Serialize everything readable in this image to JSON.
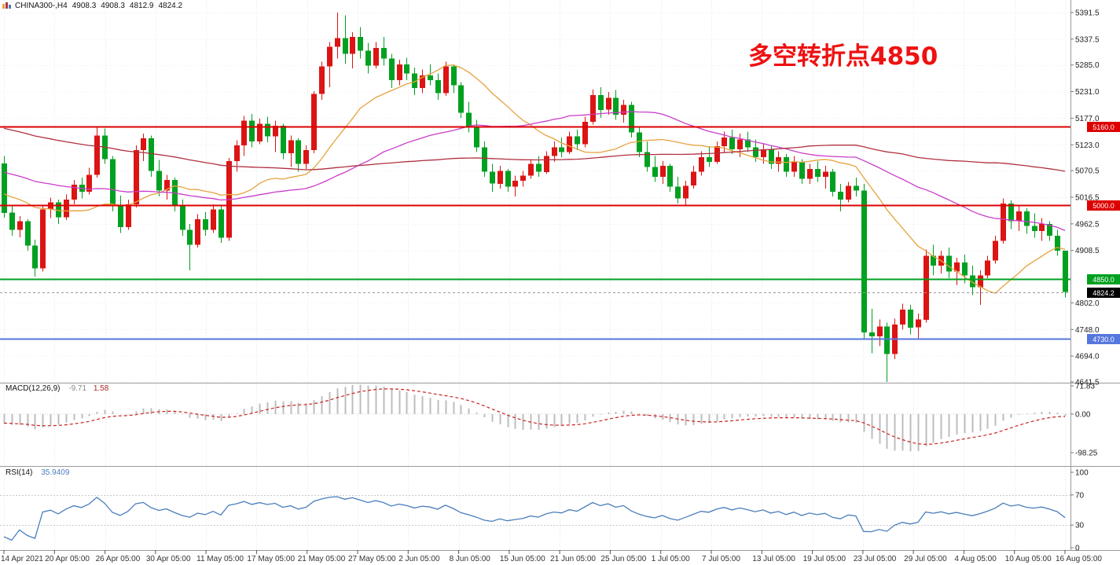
{
  "header": {
    "title": "CHINA300-,H4",
    "open": "4908.3",
    "high": "4908.3",
    "low": "4812.9",
    "close": "4824.2"
  },
  "chart_data": {
    "type": "candlestick",
    "symbol": "CHINA300-",
    "timeframe": "H4",
    "annotation": {
      "text": "多空转折点4850",
      "color": "#ee1111"
    },
    "ylim": [
      4641.5,
      5391.5
    ],
    "price_ticks": [
      "5391.5",
      "5337.5",
      "5285.0",
      "5231.0",
      "5177.0",
      "5123.0",
      "5070.5",
      "5016.5",
      "4962.5",
      "4908.5",
      "4802.0",
      "4748.0",
      "4694.0",
      "4641.5"
    ],
    "x_labels": [
      "14 Apr 2021",
      "20 Apr 05:00",
      "26 Apr 05:00",
      "30 Apr 05:00",
      "11 May 05:00",
      "17 May 05:00",
      "21 May 05:00",
      "27 May 05:00",
      "2 Jun 05:00",
      "8 Jun 05:00",
      "15 Jun 05:00",
      "21 Jun 05:00",
      "25 Jun 05:00",
      "1 Jul 05:00",
      "7 Jul 05:00",
      "13 Jul 05:00",
      "19 Jul 05:00",
      "23 Jul 05:00",
      "29 Jul 05:00",
      "4 Aug 05:00",
      "10 Aug 05:00",
      "16 Aug 05:00"
    ],
    "levels": [
      {
        "price": 5160.0,
        "label": "5160.0",
        "color": "#dd0000",
        "text_color": "#ffffff"
      },
      {
        "price": 5000.0,
        "label": "5000.0",
        "color": "#dd0000",
        "text_color": "#ffffff"
      },
      {
        "price": 4850.0,
        "label": "4850.0",
        "color": "#00a020",
        "text_color": "#ffffff"
      },
      {
        "price": 4730.0,
        "label": "4730.0",
        "color": "#5577dd",
        "text_color": "#ffffff"
      }
    ],
    "current_price": {
      "price": 4824.2,
      "label": "4824.2",
      "bg": "#000000",
      "text_color": "#ffffff"
    },
    "colors": {
      "up": "#dc1414",
      "down": "#00a020",
      "background": "#ffffff",
      "grid": "#e7e7e7"
    },
    "moving_averages": [
      {
        "period": 18,
        "color": "#e6a23c"
      },
      {
        "period": 45,
        "color": "#c93dc9"
      },
      {
        "period": 100,
        "color": "#b03040"
      }
    ],
    "history_hint": {
      "start": 5320,
      "end": 5000,
      "bars": 100
    },
    "candles_ohlc": [
      [
        5085,
        5100,
        4975,
        4985
      ],
      [
        4985,
        5000,
        4938,
        4950
      ],
      [
        4950,
        4978,
        4935,
        4968
      ],
      [
        4968,
        4972,
        4908,
        4918
      ],
      [
        4918,
        4930,
        4855,
        4872
      ],
      [
        4872,
        4998,
        4866,
        4992
      ],
      [
        4992,
        5016,
        4974,
        5006
      ],
      [
        5006,
        5012,
        4962,
        4976
      ],
      [
        4976,
        5022,
        4970,
        5012
      ],
      [
        5012,
        5052,
        5002,
        5042
      ],
      [
        5042,
        5056,
        5014,
        5028
      ],
      [
        5028,
        5076,
        5022,
        5062
      ],
      [
        5062,
        5160,
        5056,
        5142
      ],
      [
        5142,
        5156,
        5084,
        5094
      ],
      [
        5094,
        5100,
        4988,
        4998
      ],
      [
        4998,
        5020,
        4944,
        4956
      ],
      [
        4956,
        5012,
        4950,
        5002
      ],
      [
        5002,
        5122,
        4996,
        5112
      ],
      [
        5112,
        5146,
        5090,
        5136
      ],
      [
        5136,
        5142,
        5058,
        5070
      ],
      [
        5070,
        5092,
        5018,
        5030
      ],
      [
        5030,
        5062,
        5012,
        5052
      ],
      [
        5052,
        5056,
        4988,
        5000
      ],
      [
        5000,
        5012,
        4938,
        4950
      ],
      [
        4950,
        4962,
        4868,
        4920
      ],
      [
        4920,
        4982,
        4914,
        4972
      ],
      [
        4972,
        4986,
        4938,
        4950
      ],
      [
        4950,
        5002,
        4944,
        4992
      ],
      [
        4992,
        5000,
        4924,
        4934
      ],
      [
        4934,
        5096,
        4928,
        5090
      ],
      [
        5090,
        5132,
        5068,
        5122
      ],
      [
        5122,
        5182,
        5100,
        5172
      ],
      [
        5172,
        5186,
        5118,
        5130
      ],
      [
        5130,
        5176,
        5124,
        5166
      ],
      [
        5166,
        5180,
        5128,
        5140
      ],
      [
        5140,
        5172,
        5108,
        5162
      ],
      [
        5162,
        5166,
        5094,
        5106
      ],
      [
        5106,
        5142,
        5078,
        5132
      ],
      [
        5132,
        5136,
        5068,
        5084
      ],
      [
        5084,
        5122,
        5074,
        5112
      ],
      [
        5112,
        5232,
        5106,
        5226
      ],
      [
        5226,
        5292,
        5214,
        5282
      ],
      [
        5282,
        5332,
        5240,
        5322
      ],
      [
        5322,
        5391.5,
        5298,
        5340
      ],
      [
        5340,
        5386,
        5288,
        5308
      ],
      [
        5308,
        5352,
        5278,
        5342
      ],
      [
        5342,
        5362,
        5298,
        5314
      ],
      [
        5314,
        5330,
        5268,
        5284
      ],
      [
        5284,
        5332,
        5278,
        5320
      ],
      [
        5320,
        5342,
        5284,
        5298
      ],
      [
        5298,
        5308,
        5238,
        5254
      ],
      [
        5254,
        5296,
        5244,
        5286
      ],
      [
        5286,
        5300,
        5254,
        5268
      ],
      [
        5268,
        5280,
        5224,
        5238
      ],
      [
        5238,
        5276,
        5228,
        5264
      ],
      [
        5264,
        5286,
        5244,
        5254
      ],
      [
        5254,
        5268,
        5214,
        5228
      ],
      [
        5228,
        5292,
        5222,
        5282
      ],
      [
        5282,
        5286,
        5228,
        5244
      ],
      [
        5244,
        5250,
        5178,
        5188
      ],
      [
        5188,
        5210,
        5148,
        5158
      ],
      [
        5158,
        5174,
        5108,
        5118
      ],
      [
        5118,
        5130,
        5058,
        5068
      ],
      [
        5068,
        5084,
        5028,
        5044
      ],
      [
        5044,
        5080,
        5034,
        5070
      ],
      [
        5070,
        5074,
        5028,
        5038
      ],
      [
        5038,
        5060,
        5018,
        5050
      ],
      [
        5050,
        5070,
        5038,
        5060
      ],
      [
        5060,
        5094,
        5054,
        5084
      ],
      [
        5084,
        5100,
        5058,
        5068
      ],
      [
        5068,
        5110,
        5064,
        5100
      ],
      [
        5100,
        5130,
        5088,
        5118
      ],
      [
        5118,
        5138,
        5098,
        5108
      ],
      [
        5108,
        5150,
        5104,
        5140
      ],
      [
        5140,
        5154,
        5112,
        5124
      ],
      [
        5124,
        5180,
        5118,
        5170
      ],
      [
        5170,
        5235,
        5164,
        5224
      ],
      [
        5224,
        5240,
        5178,
        5194
      ],
      [
        5194,
        5230,
        5184,
        5218
      ],
      [
        5218,
        5234,
        5174,
        5184
      ],
      [
        5184,
        5214,
        5168,
        5204
      ],
      [
        5204,
        5210,
        5138,
        5148
      ],
      [
        5148,
        5160,
        5098,
        5108
      ],
      [
        5108,
        5130,
        5068,
        5078
      ],
      [
        5078,
        5100,
        5048,
        5058
      ],
      [
        5058,
        5090,
        5044,
        5080
      ],
      [
        5080,
        5084,
        5028,
        5038
      ],
      [
        5038,
        5058,
        5004,
        5014
      ],
      [
        5014,
        5050,
        5000,
        5040
      ],
      [
        5040,
        5080,
        5034,
        5068
      ],
      [
        5068,
        5110,
        5060,
        5098
      ],
      [
        5098,
        5120,
        5078,
        5088
      ],
      [
        5088,
        5130,
        5084,
        5120
      ],
      [
        5120,
        5150,
        5108,
        5138
      ],
      [
        5138,
        5154,
        5104,
        5114
      ],
      [
        5114,
        5146,
        5098,
        5134
      ],
      [
        5134,
        5150,
        5108,
        5118
      ],
      [
        5118,
        5134,
        5088,
        5098
      ],
      [
        5098,
        5124,
        5084,
        5114
      ],
      [
        5114,
        5120,
        5074,
        5084
      ],
      [
        5084,
        5110,
        5068,
        5098
      ],
      [
        5098,
        5104,
        5058,
        5068
      ],
      [
        5068,
        5100,
        5058,
        5088
      ],
      [
        5088,
        5094,
        5044,
        5054
      ],
      [
        5054,
        5084,
        5044,
        5074
      ],
      [
        5074,
        5090,
        5048,
        5058
      ],
      [
        5058,
        5080,
        5034,
        5068
      ],
      [
        5068,
        5074,
        5018,
        5028
      ],
      [
        5028,
        5044,
        4988,
        5012
      ],
      [
        5012,
        5048,
        5006,
        5040
      ],
      [
        5040,
        5056,
        5018,
        5030
      ],
      [
        5030,
        5044,
        4728,
        4742
      ],
      [
        4742,
        4790,
        4700,
        4734
      ],
      [
        4734,
        4768,
        4714,
        4754
      ],
      [
        4754,
        4762,
        4641.5,
        4698
      ],
      [
        4698,
        4770,
        4688,
        4758
      ],
      [
        4758,
        4800,
        4748,
        4788
      ],
      [
        4788,
        4798,
        4738,
        4752
      ],
      [
        4752,
        4780,
        4728,
        4768
      ],
      [
        4768,
        4910,
        4762,
        4898
      ],
      [
        4898,
        4920,
        4858,
        4878
      ],
      [
        4878,
        4908,
        4862,
        4898
      ],
      [
        4898,
        4914,
        4852,
        4866
      ],
      [
        4866,
        4894,
        4838,
        4884
      ],
      [
        4884,
        4900,
        4842,
        4858
      ],
      [
        4858,
        4878,
        4818,
        4834
      ],
      [
        4834,
        4868,
        4798,
        4858
      ],
      [
        4858,
        4898,
        4852,
        4888
      ],
      [
        4888,
        4938,
        4882,
        4928
      ],
      [
        4928,
        5014,
        4922,
        5004
      ],
      [
        5004,
        5010,
        4952,
        4968
      ],
      [
        4968,
        4998,
        4948,
        4988
      ],
      [
        4988,
        4994,
        4942,
        4958
      ],
      [
        4958,
        4984,
        4934,
        4948
      ],
      [
        4948,
        4974,
        4928,
        4962
      ],
      [
        4962,
        4968,
        4928,
        4938
      ],
      [
        4938,
        4950,
        4898,
        4908.3
      ],
      [
        4908.3,
        4908.3,
        4812.9,
        4824.2
      ]
    ],
    "indicators": {
      "macd": {
        "label": "MACD(12,26,9)",
        "value_hist": "-9.71",
        "value_signal": "1.58",
        "params": [
          12,
          26,
          9
        ],
        "ylim": [
          -98.25,
          71.83
        ],
        "axis_ticks": [
          "71.83",
          "0.00",
          "-98.25"
        ],
        "histogram_color": "#bdbdbd",
        "signal_color": "#cc2222"
      },
      "rsi": {
        "label": "RSI(14)",
        "value": "35.9409",
        "period": 14,
        "levels": [
          70,
          30
        ],
        "axis_ticks": [
          "100",
          "70",
          "30",
          "0"
        ],
        "line_color": "#4a7ebb"
      }
    }
  }
}
